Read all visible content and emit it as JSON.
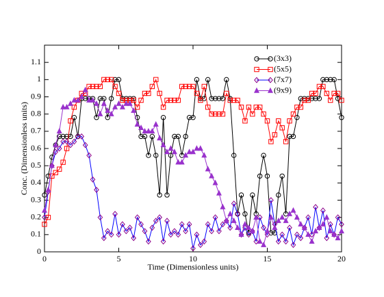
{
  "chart_data": {
    "type": "line",
    "xlabel": "Time (Dimensionless units)",
    "ylabel": "Conc. (Dimensionless units)",
    "xlim": [
      0,
      20
    ],
    "xticks": [
      0,
      5,
      10,
      15,
      20
    ],
    "ylim": [
      0,
      1.2
    ],
    "yticks": [
      0,
      0.1,
      0.2,
      0.3,
      0.4,
      0.5,
      0.6,
      0.7,
      0.8,
      0.9,
      1,
      1.1
    ],
    "legend": "upper right",
    "x": [
      0,
      0.25,
      0.5,
      0.75,
      1,
      1.25,
      1.5,
      1.75,
      2,
      2.25,
      2.5,
      2.75,
      3,
      3.25,
      3.5,
      3.75,
      4,
      4.25,
      4.5,
      4.75,
      5,
      5.25,
      5.5,
      5.75,
      6,
      6.25,
      6.5,
      6.75,
      7,
      7.25,
      7.5,
      7.75,
      8,
      8.25,
      8.5,
      8.75,
      9,
      9.25,
      9.5,
      9.75,
      10,
      10.25,
      10.5,
      10.75,
      11,
      11.25,
      11.5,
      11.75,
      12,
      12.25,
      12.5,
      12.75,
      13,
      13.25,
      13.5,
      13.75,
      14,
      14.25,
      14.5,
      14.75,
      15,
      15.25,
      15.5,
      15.75,
      16,
      16.25,
      16.5,
      16.75,
      17,
      17.25,
      17.5,
      17.75,
      18,
      18.25,
      18.5,
      18.75,
      19,
      19.25,
      19.5,
      19.75,
      20
    ],
    "series": [
      {
        "name": "(3x3)",
        "color": "#000000",
        "marker_color": "#000000",
        "marker": "circle",
        "values": [
          0.33,
          0.44,
          0.55,
          0.62,
          0.67,
          0.67,
          0.67,
          0.67,
          0.78,
          0.67,
          0.89,
          0.89,
          0.89,
          0.89,
          0.78,
          0.89,
          0.89,
          0.78,
          0.89,
          1.0,
          1.0,
          0.89,
          0.89,
          0.89,
          0.89,
          0.78,
          0.67,
          0.67,
          0.56,
          0.67,
          0.56,
          0.33,
          0.78,
          0.33,
          0.56,
          0.67,
          0.67,
          0.56,
          0.67,
          0.78,
          0.78,
          1.0,
          0.89,
          0.89,
          1.0,
          0.89,
          0.89,
          0.89,
          0.89,
          1.0,
          0.89,
          0.56,
          0.22,
          0.33,
          0.22,
          0.11,
          0.33,
          0.22,
          0.44,
          0.56,
          0.44,
          0.11,
          0.11,
          0.33,
          0.44,
          0.22,
          0.67,
          0.67,
          0.78,
          0.89,
          0.89,
          0.89,
          0.89,
          0.89,
          0.89,
          1.0,
          1.0,
          1.0,
          1.0,
          0.89,
          0.78
        ]
      },
      {
        "name": "(5x5)",
        "color": "#ff0000",
        "marker_color": "#ff0000",
        "marker": "square",
        "values": [
          0.16,
          0.2,
          0.44,
          0.46,
          0.48,
          0.52,
          0.6,
          0.76,
          0.84,
          0.88,
          0.92,
          0.92,
          0.96,
          0.96,
          0.96,
          0.96,
          1.0,
          1.0,
          1.0,
          0.96,
          0.92,
          0.88,
          0.88,
          0.88,
          0.88,
          0.84,
          0.88,
          0.92,
          0.92,
          0.96,
          1.0,
          0.92,
          0.84,
          0.88,
          0.88,
          0.88,
          0.88,
          0.96,
          0.96,
          0.96,
          0.96,
          0.92,
          0.88,
          0.96,
          0.84,
          0.8,
          0.8,
          0.8,
          0.8,
          0.92,
          0.88,
          0.88,
          0.88,
          0.84,
          0.76,
          0.84,
          0.8,
          0.84,
          0.84,
          0.8,
          0.76,
          0.64,
          0.68,
          0.76,
          0.72,
          0.64,
          0.76,
          0.8,
          0.84,
          0.84,
          0.88,
          0.88,
          0.92,
          0.92,
          0.96,
          0.96,
          0.92,
          0.88,
          0.92,
          0.92,
          0.88
        ]
      },
      {
        "name": "(7x7)",
        "color": "#0000ff",
        "marker_color": "#8b008b",
        "marker": "diamond",
        "values": [
          0.2,
          0.35,
          0.5,
          0.58,
          0.6,
          0.64,
          0.64,
          0.62,
          0.64,
          0.67,
          0.67,
          0.62,
          0.56,
          0.42,
          0.36,
          0.2,
          0.08,
          0.12,
          0.1,
          0.22,
          0.1,
          0.16,
          0.12,
          0.14,
          0.08,
          0.2,
          0.16,
          0.12,
          0.06,
          0.14,
          0.18,
          0.2,
          0.06,
          0.18,
          0.1,
          0.12,
          0.1,
          0.16,
          0.12,
          0.16,
          0.02,
          0.1,
          0.04,
          0.06,
          0.16,
          0.12,
          0.2,
          0.12,
          0.16,
          0.18,
          0.14,
          0.28,
          0.22,
          0.1,
          0.14,
          0.1,
          0.12,
          0.06,
          0.2,
          0.14,
          0.1,
          0.3,
          0.16,
          0.06,
          0.1,
          0.06,
          0.14,
          0.04,
          0.1,
          0.08,
          0.14,
          0.2,
          0.1,
          0.26,
          0.14,
          0.24,
          0.08,
          0.16,
          0.1,
          0.2,
          0.16
        ]
      },
      {
        "name": "(9x9)",
        "color": "#9932cc",
        "marker_color": "#9932cc",
        "marker": "triangle",
        "values": [
          0.24,
          0.36,
          0.5,
          0.62,
          0.7,
          0.84,
          0.84,
          0.86,
          0.88,
          0.88,
          0.9,
          0.94,
          0.88,
          0.88,
          0.86,
          0.8,
          0.86,
          0.82,
          0.8,
          0.84,
          0.86,
          0.84,
          0.86,
          0.86,
          0.82,
          0.74,
          0.72,
          0.7,
          0.7,
          0.7,
          0.74,
          0.66,
          0.62,
          0.58,
          0.6,
          0.58,
          0.52,
          0.52,
          0.56,
          0.58,
          0.58,
          0.6,
          0.6,
          0.56,
          0.48,
          0.44,
          0.4,
          0.34,
          0.26,
          0.18,
          0.22,
          0.18,
          0.14,
          0.1,
          0.16,
          0.14,
          0.12,
          0.2,
          0.06,
          0.04,
          0.12,
          0.2,
          0.14,
          0.18,
          0.2,
          0.18,
          0.22,
          0.24,
          0.2,
          0.16,
          0.14,
          0.1,
          0.06,
          0.12,
          0.14,
          0.16,
          0.2,
          0.12,
          0.1,
          0.08,
          0.12
        ]
      }
    ]
  }
}
